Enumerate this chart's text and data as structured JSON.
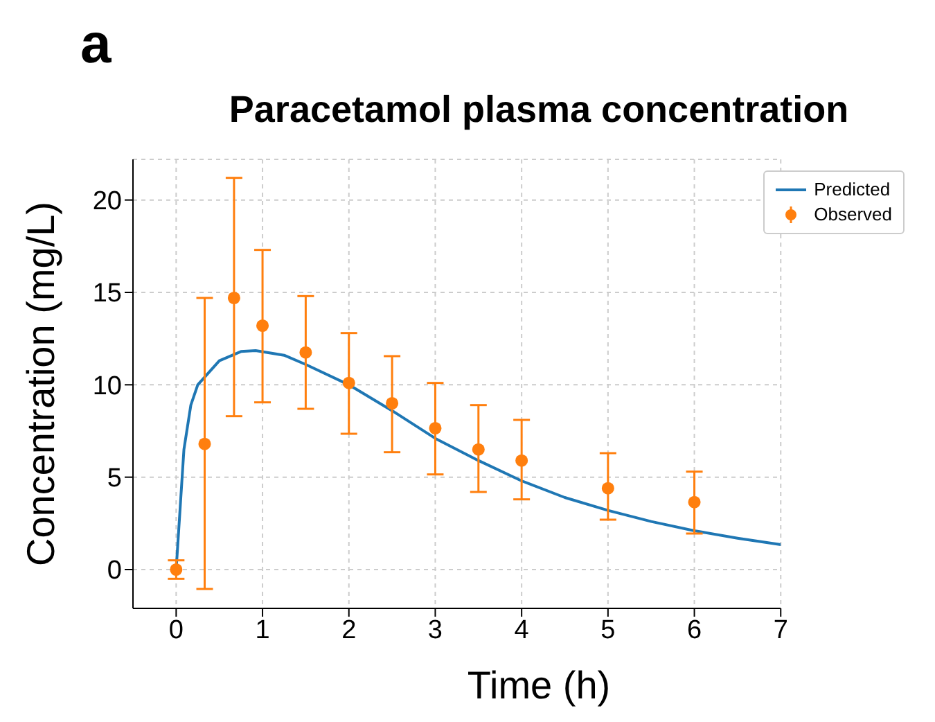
{
  "chart_data": {
    "type": "line",
    "title": "Paracetamol plasma concentration",
    "xlabel": "Time (h)",
    "ylabel": "Concentration (mg/L)",
    "annotations": [
      "a"
    ],
    "xlim": [
      -0.5,
      7
    ],
    "xticks": [
      0,
      1,
      2,
      3,
      4,
      5,
      6,
      7
    ],
    "ylim": [
      -2.1,
      22.2
    ],
    "yticks": [
      0,
      5,
      10,
      15,
      20
    ],
    "grid": true,
    "legend": "top right",
    "series": [
      {
        "name": "Predicted",
        "color": "#1f77b4",
        "marker": "none",
        "x": [
          0,
          0.09,
          0.17,
          0.25,
          0.5,
          0.75,
          0.92,
          1.25,
          1.5,
          2,
          2.5,
          3,
          3.5,
          4,
          4.5,
          5,
          5.5,
          6,
          6.5,
          7
        ],
        "values": [
          0,
          6.5,
          8.9,
          10.0,
          11.3,
          11.8,
          11.85,
          11.6,
          11.1,
          10.0,
          8.6,
          7.1,
          5.9,
          4.8,
          3.9,
          3.2,
          2.6,
          2.1,
          1.7,
          1.35
        ]
      },
      {
        "name": "Observed",
        "type": "scatter",
        "color": "#ff7f0e",
        "marker": "circle",
        "x": [
          0,
          0.33,
          0.67,
          1,
          1.5,
          2,
          2.5,
          3,
          3.5,
          4,
          5,
          6
        ],
        "values": [
          0,
          6.8,
          14.7,
          13.2,
          11.75,
          10.1,
          9.0,
          7.65,
          6.5,
          5.9,
          4.4,
          3.65
        ],
        "errors": [
          [
            -0.5,
            0.5
          ],
          [
            -1.05,
            14.7
          ],
          [
            8.3,
            21.2
          ],
          [
            9.05,
            17.3
          ],
          [
            8.7,
            14.8
          ],
          [
            7.35,
            12.8
          ],
          [
            6.35,
            11.55
          ],
          [
            5.15,
            10.1
          ],
          [
            4.2,
            8.9
          ],
          [
            3.8,
            8.1
          ],
          [
            2.7,
            6.3
          ],
          [
            1.95,
            5.3
          ]
        ]
      }
    ]
  }
}
